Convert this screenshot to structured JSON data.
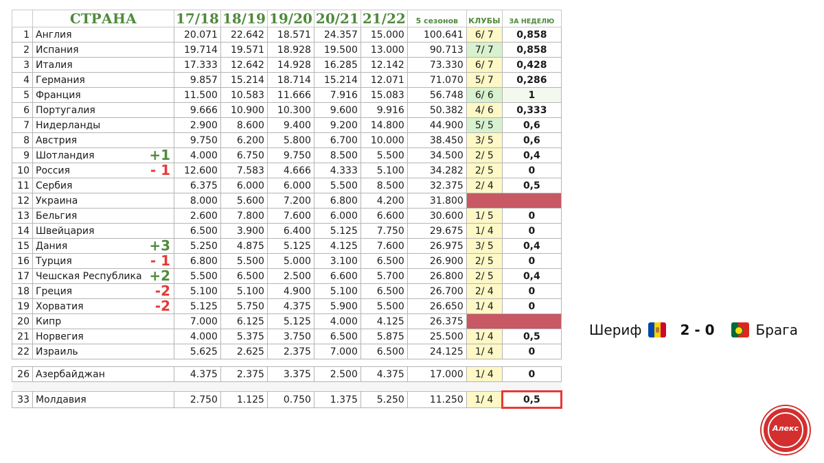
{
  "header": {
    "country": "СТРАНА",
    "seasons": [
      "17/18",
      "18/19",
      "19/20",
      "20/21",
      "21/22"
    ],
    "total": "5 сезонов",
    "clubs": "КЛУБЫ",
    "week": "ЗА НЕДЕЛЮ"
  },
  "rows": [
    {
      "idx": "1",
      "country": "Англия",
      "move": "",
      "s": [
        "20.071",
        "22.642",
        "18.571",
        "24.357",
        "15.000"
      ],
      "total": "100.641",
      "clubs": "6/ 7",
      "week": "0,858"
    },
    {
      "idx": "2",
      "country": "Испания",
      "move": "",
      "s": [
        "19.714",
        "19.571",
        "18.928",
        "19.500",
        "13.000"
      ],
      "total": "90.713",
      "clubs": "7/ 7",
      "week": "0,858"
    },
    {
      "idx": "3",
      "country": "Италия",
      "move": "",
      "s": [
        "17.333",
        "12.642",
        "14.928",
        "16.285",
        "12.142"
      ],
      "total": "73.330",
      "clubs": "6/ 7",
      "week": "0,428"
    },
    {
      "idx": "4",
      "country": "Германия",
      "move": "",
      "s": [
        "9.857",
        "15.214",
        "18.714",
        "15.214",
        "12.071"
      ],
      "total": "71.070",
      "clubs": "5/ 7",
      "week": "0,286"
    },
    {
      "idx": "5",
      "country": "Франция",
      "move": "",
      "s": [
        "11.500",
        "10.583",
        "11.666",
        "7.916",
        "15.083"
      ],
      "total": "56.748",
      "clubs": "6/ 6",
      "week": "1"
    },
    {
      "idx": "6",
      "country": "Португалия",
      "move": "",
      "s": [
        "9.666",
        "10.900",
        "10.300",
        "9.600",
        "9.916"
      ],
      "total": "50.382",
      "clubs": "4/ 6",
      "week": "0,333"
    },
    {
      "idx": "7",
      "country": "Нидерланды",
      "move": "",
      "s": [
        "2.900",
        "8.600",
        "9.400",
        "9.200",
        "14.800"
      ],
      "total": "44.900",
      "clubs": "5/ 5",
      "week": "0,6"
    },
    {
      "idx": "8",
      "country": "Австрия",
      "move": "",
      "s": [
        "9.750",
        "6.200",
        "5.800",
        "6.700",
        "10.000"
      ],
      "total": "38.450",
      "clubs": "3/ 5",
      "week": "0,6"
    },
    {
      "idx": "9",
      "country": "Шотландия",
      "move": "+1",
      "s": [
        "4.000",
        "6.750",
        "9.750",
        "8.500",
        "5.500"
      ],
      "total": "34.500",
      "clubs": "2/ 5",
      "week": "0,4"
    },
    {
      "idx": "10",
      "country": "Россия",
      "move": "- 1",
      "s": [
        "12.600",
        "7.583",
        "4.666",
        "4.333",
        "5.100"
      ],
      "total": "34.282",
      "clubs": "2/ 5",
      "week": "0"
    },
    {
      "idx": "11",
      "country": "Сербия",
      "move": "",
      "s": [
        "6.375",
        "6.000",
        "6.000",
        "5.500",
        "8.500"
      ],
      "total": "32.375",
      "clubs": "2/ 4",
      "week": "0,5"
    },
    {
      "idx": "12",
      "country": "Украина",
      "move": "",
      "s": [
        "8.000",
        "5.600",
        "7.200",
        "6.800",
        "4.200"
      ],
      "total": "31.800",
      "clubs": "",
      "week": ""
    },
    {
      "idx": "13",
      "country": "Бельгия",
      "move": "",
      "s": [
        "2.600",
        "7.800",
        "7.600",
        "6.000",
        "6.600"
      ],
      "total": "30.600",
      "clubs": "1/ 5",
      "week": "0"
    },
    {
      "idx": "14",
      "country": "Швейцария",
      "move": "",
      "s": [
        "6.500",
        "3.900",
        "6.400",
        "5.125",
        "7.750"
      ],
      "total": "29.675",
      "clubs": "1/ 4",
      "week": "0"
    },
    {
      "idx": "15",
      "country": "Дания",
      "move": "+3",
      "s": [
        "5.250",
        "4.875",
        "5.125",
        "4.125",
        "7.600"
      ],
      "total": "26.975",
      "clubs": "3/ 5",
      "week": "0,4"
    },
    {
      "idx": "16",
      "country": "Турция",
      "move": "- 1",
      "s": [
        "6.800",
        "5.500",
        "5.000",
        "3.100",
        "6.500"
      ],
      "total": "26.900",
      "clubs": "2/ 5",
      "week": "0"
    },
    {
      "idx": "17",
      "country": "Чешская Республика",
      "move": "+2",
      "s": [
        "5.500",
        "6.500",
        "2.500",
        "6.600",
        "5.700"
      ],
      "total": "26.800",
      "clubs": "2/ 5",
      "week": "0,4"
    },
    {
      "idx": "18",
      "country": "Греция",
      "move": "-2",
      "s": [
        "5.100",
        "5.100",
        "4.900",
        "5.100",
        "6.500"
      ],
      "total": "26.700",
      "clubs": "2/ 4",
      "week": "0"
    },
    {
      "idx": "19",
      "country": "Хорватия",
      "move": "-2",
      "s": [
        "5.125",
        "5.750",
        "4.375",
        "5.900",
        "5.500"
      ],
      "total": "26.650",
      "clubs": "1/ 4",
      "week": "0"
    },
    {
      "idx": "20",
      "country": "Кипр",
      "move": "",
      "s": [
        "7.000",
        "6.125",
        "5.125",
        "4.000",
        "4.125"
      ],
      "total": "26.375",
      "clubs": "",
      "week": ""
    },
    {
      "idx": "21",
      "country": "Норвегия",
      "move": "",
      "s": [
        "4.000",
        "5.375",
        "3.750",
        "6.500",
        "5.875"
      ],
      "total": "25.500",
      "clubs": "1/ 4",
      "week": "0,5"
    },
    {
      "idx": "22",
      "country": "Израиль",
      "move": "",
      "s": [
        "5.625",
        "2.625",
        "2.375",
        "7.000",
        "6.500"
      ],
      "total": "24.125",
      "clubs": "1/ 4",
      "week": "0"
    },
    {
      "idx": "26",
      "country": "Азербайджан",
      "move": "",
      "s": [
        "4.375",
        "2.375",
        "3.375",
        "2.500",
        "4.375"
      ],
      "total": "17.000",
      "clubs": "1/ 4",
      "week": "0"
    },
    {
      "idx": "33",
      "country": "Молдавия",
      "move": "",
      "s": [
        "2.750",
        "1.125",
        "0.750",
        "1.375",
        "5.250"
      ],
      "total": "11.250",
      "clubs": "1/ 4",
      "week": "0,5"
    }
  ],
  "match": {
    "home": "Шериф",
    "score": "2 - 0",
    "away": "Брага"
  },
  "logo": {
    "text": "Алекс"
  },
  "colors": {
    "header_green": "#4f8a3c",
    "week_red": "#e53935",
    "eliminated": "#c75864",
    "clubs_yellow": "#fdf8c6",
    "clubs_green": "#d8f1cf"
  }
}
